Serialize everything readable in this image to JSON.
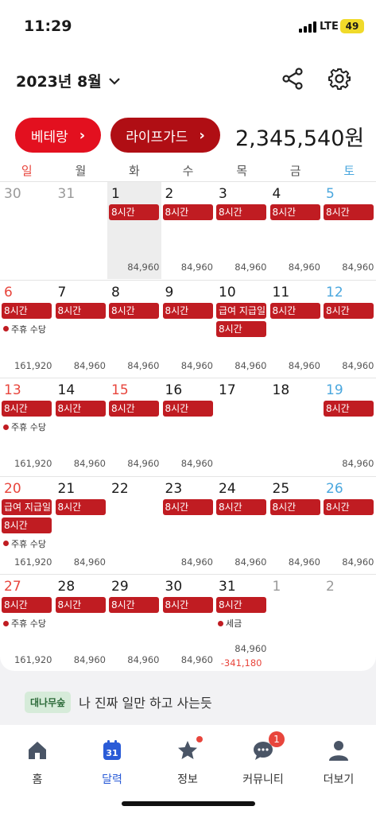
{
  "status_bar": {
    "time": "11:29",
    "network": "LTE",
    "battery": "49"
  },
  "header": {
    "month_title": "2023년 8월",
    "buttons": [
      {
        "label": "베테랑"
      },
      {
        "label": "라이프가드"
      }
    ],
    "total_amount": "2,345,540원"
  },
  "weekdays": [
    "일",
    "월",
    "화",
    "수",
    "목",
    "금",
    "토"
  ],
  "calendar": {
    "weeks": [
      {
        "days": [
          {
            "day": "30",
            "type": "other",
            "events": [],
            "notes": [],
            "amount": ""
          },
          {
            "day": "31",
            "type": "other",
            "events": [],
            "notes": [],
            "amount": ""
          },
          {
            "day": "1",
            "type": "today",
            "events": [
              "8시간"
            ],
            "notes": [],
            "amount": "84,960"
          },
          {
            "day": "2",
            "type": "normal",
            "events": [
              "8시간"
            ],
            "notes": [],
            "amount": "84,960"
          },
          {
            "day": "3",
            "type": "normal",
            "events": [
              "8시간"
            ],
            "notes": [],
            "amount": "84,960"
          },
          {
            "day": "4",
            "type": "normal",
            "events": [
              "8시간"
            ],
            "notes": [],
            "amount": "84,960"
          },
          {
            "day": "5",
            "type": "sat",
            "events": [
              "8시간"
            ],
            "notes": [],
            "amount": "84,960"
          }
        ]
      },
      {
        "days": [
          {
            "day": "6",
            "type": "sun",
            "events": [
              "8시간"
            ],
            "notes": [
              "주휴 수당"
            ],
            "amount": "161,920"
          },
          {
            "day": "7",
            "type": "normal",
            "events": [
              "8시간"
            ],
            "notes": [],
            "amount": "84,960"
          },
          {
            "day": "8",
            "type": "normal",
            "events": [
              "8시간"
            ],
            "notes": [],
            "amount": "84,960"
          },
          {
            "day": "9",
            "type": "normal",
            "events": [
              "8시간"
            ],
            "notes": [],
            "amount": "84,960"
          },
          {
            "day": "10",
            "type": "normal",
            "events": [
              "급여 지급일",
              "8시간"
            ],
            "notes": [],
            "amount": "84,960"
          },
          {
            "day": "11",
            "type": "normal",
            "events": [
              "8시간"
            ],
            "notes": [],
            "amount": "84,960"
          },
          {
            "day": "12",
            "type": "sat",
            "events": [
              "8시간"
            ],
            "notes": [],
            "amount": "84,960"
          }
        ]
      },
      {
        "days": [
          {
            "day": "13",
            "type": "sun",
            "events": [
              "8시간"
            ],
            "notes": [
              "주휴 수당"
            ],
            "amount": "161,920"
          },
          {
            "day": "14",
            "type": "normal",
            "events": [
              "8시간"
            ],
            "notes": [],
            "amount": "84,960"
          },
          {
            "day": "15",
            "type": "sun",
            "events": [
              "8시간"
            ],
            "notes": [],
            "amount": "84,960"
          },
          {
            "day": "16",
            "type": "normal",
            "events": [
              "8시간"
            ],
            "notes": [],
            "amount": "84,960"
          },
          {
            "day": "17",
            "type": "normal",
            "events": [],
            "notes": [],
            "amount": ""
          },
          {
            "day": "18",
            "type": "normal",
            "events": [],
            "notes": [],
            "amount": ""
          },
          {
            "day": "19",
            "type": "sat",
            "events": [
              "8시간"
            ],
            "notes": [],
            "amount": "84,960"
          }
        ]
      },
      {
        "days": [
          {
            "day": "20",
            "type": "sun",
            "events": [
              "급여 지급일",
              "8시간"
            ],
            "notes": [
              "주휴 수당"
            ],
            "amount": "161,920"
          },
          {
            "day": "21",
            "type": "normal",
            "events": [
              "8시간"
            ],
            "notes": [],
            "amount": "84,960"
          },
          {
            "day": "22",
            "type": "normal",
            "events": [],
            "notes": [],
            "amount": ""
          },
          {
            "day": "23",
            "type": "normal",
            "events": [
              "8시간"
            ],
            "notes": [],
            "amount": "84,960"
          },
          {
            "day": "24",
            "type": "normal",
            "events": [
              "8시간"
            ],
            "notes": [],
            "amount": "84,960"
          },
          {
            "day": "25",
            "type": "normal",
            "events": [
              "8시간"
            ],
            "notes": [],
            "amount": "84,960"
          },
          {
            "day": "26",
            "type": "sat",
            "events": [
              "8시간"
            ],
            "notes": [],
            "amount": "84,960"
          }
        ]
      },
      {
        "days": [
          {
            "day": "27",
            "type": "sun",
            "events": [
              "8시간"
            ],
            "notes": [
              "주휴 수당"
            ],
            "amount": "161,920"
          },
          {
            "day": "28",
            "type": "normal",
            "events": [
              "8시간"
            ],
            "notes": [],
            "amount": "84,960"
          },
          {
            "day": "29",
            "type": "normal",
            "events": [
              "8시간"
            ],
            "notes": [],
            "amount": "84,960"
          },
          {
            "day": "30",
            "type": "normal",
            "events": [
              "8시간"
            ],
            "notes": [],
            "amount": "84,960"
          },
          {
            "day": "31",
            "type": "normal",
            "events": [
              "8시간"
            ],
            "notes": [
              "세금"
            ],
            "amount": "84,960",
            "deduction": "-341,180"
          },
          {
            "day": "1",
            "type": "other",
            "events": [],
            "notes": [],
            "amount": ""
          },
          {
            "day": "2",
            "type": "other",
            "events": [],
            "notes": [],
            "amount": ""
          }
        ]
      }
    ]
  },
  "banner": {
    "tag": "대나무숲",
    "text": "나 진짜 일만 하고 사는듯"
  },
  "tabbar": {
    "calendar_day": "31",
    "community_badge": "1",
    "items": [
      {
        "label": "홈"
      },
      {
        "label": "달력"
      },
      {
        "label": "정보"
      },
      {
        "label": "커뮤니티"
      },
      {
        "label": "더보기"
      }
    ]
  },
  "colors": {
    "brand_red": "#e3101f",
    "event_red": "#c01c22",
    "saturday_blue": "#4aa7de",
    "active_tab": "#2a5bd7"
  }
}
